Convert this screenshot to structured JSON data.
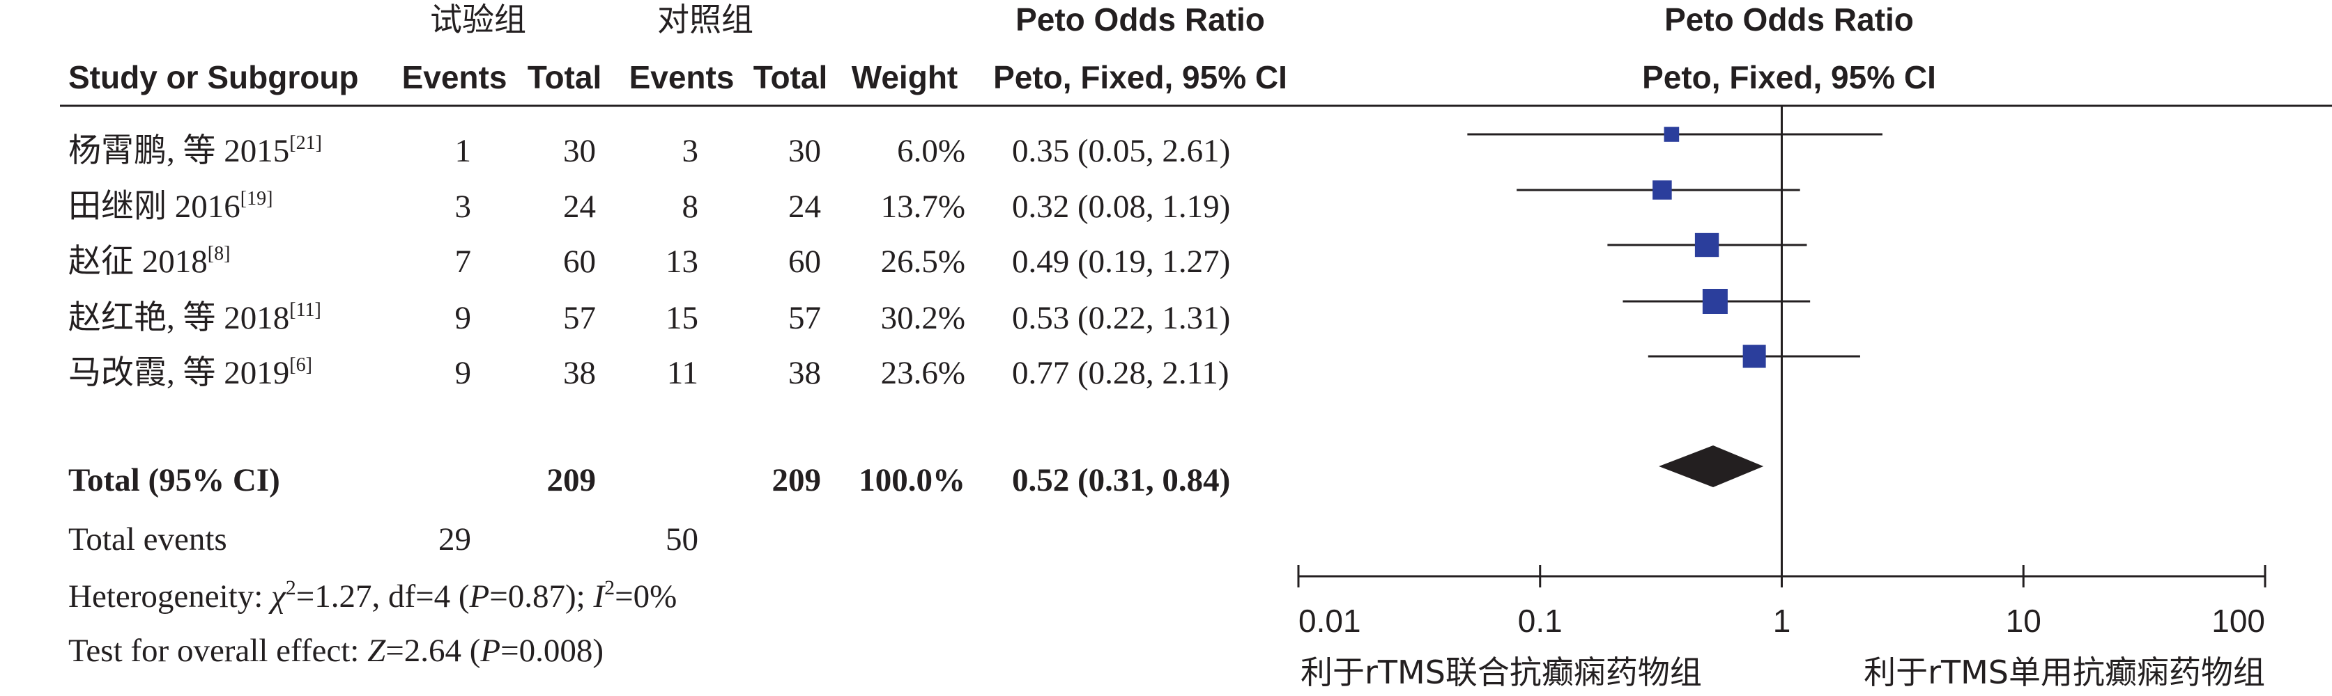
{
  "chart_data": {
    "type": "forest",
    "groups": {
      "experimental": "试验组",
      "control": "对照组"
    },
    "columns": {
      "study": "Study or Subgroup",
      "events": "Events",
      "total": "Total",
      "weight": "Weight",
      "or_title": "Peto Odds Ratio",
      "or_method": "Peto, Fixed, 95% CI"
    },
    "plot_header": {
      "title": "Peto Odds Ratio",
      "method": "Peto, Fixed, 95% CI"
    },
    "studies": [
      {
        "name": "杨霄鹏, 等 2015",
        "ref": "[21]",
        "exp_events": "1",
        "exp_total": "30",
        "ctl_events": "3",
        "ctl_total": "30",
        "weight_label": "6.0%",
        "weight": 6.0,
        "ci_label": "0.35 (0.05, 2.61)",
        "or": 0.35,
        "lower": 0.05,
        "upper": 2.61
      },
      {
        "name": "田继刚 2016",
        "ref": "[19]",
        "exp_events": "3",
        "exp_total": "24",
        "ctl_events": "8",
        "ctl_total": "24",
        "weight_label": "13.7%",
        "weight": 13.7,
        "ci_label": "0.32 (0.08, 1.19)",
        "or": 0.32,
        "lower": 0.08,
        "upper": 1.19
      },
      {
        "name": "赵征 2018",
        "ref": "[8]",
        "exp_events": "7",
        "exp_total": "60",
        "ctl_events": "13",
        "ctl_total": "60",
        "weight_label": "26.5%",
        "weight": 26.5,
        "ci_label": "0.49 (0.19, 1.27)",
        "or": 0.49,
        "lower": 0.19,
        "upper": 1.27
      },
      {
        "name": "赵红艳, 等 2018",
        "ref": "[11]",
        "exp_events": "9",
        "exp_total": "57",
        "ctl_events": "15",
        "ctl_total": "57",
        "weight_label": "30.2%",
        "weight": 30.2,
        "ci_label": "0.53 (0.22, 1.31)",
        "or": 0.53,
        "lower": 0.22,
        "upper": 1.31
      },
      {
        "name": "马改霞, 等 2019",
        "ref": "[6]",
        "exp_events": "9",
        "exp_total": "38",
        "ctl_events": "11",
        "ctl_total": "38",
        "weight_label": "23.6%",
        "weight": 23.6,
        "ci_label": "0.77 (0.28, 2.11)",
        "or": 0.77,
        "lower": 0.28,
        "upper": 2.11
      }
    ],
    "total": {
      "label": "Total (95% CI)",
      "exp_total": "209",
      "ctl_total": "209",
      "weight_label": "100.0%",
      "ci_label": "0.52 (0.31, 0.84)",
      "or": 0.52,
      "lower": 0.31,
      "upper": 0.84
    },
    "total_events": {
      "label": "Total events",
      "exp": "29",
      "ctl": "50"
    },
    "heterogeneity": {
      "label": "Heterogeneity: ",
      "chi_symbol": "χ",
      "chi_sup": "2",
      "chi_value": "=1.27, df=4 (",
      "p_symbol": "P",
      "p_value": "=0.87); ",
      "i_symbol": "I",
      "i_sup": "2",
      "i_value": "=0%"
    },
    "overall_effect": {
      "label": "Test for overall effect: ",
      "z_symbol": "Z",
      "z_value": "=2.64 (",
      "p_symbol": "P",
      "p_value": "=0.008)"
    },
    "x_axis": {
      "scale": "log",
      "range": [
        0.01,
        100
      ],
      "ticks": [
        0.01,
        0.1,
        1,
        10,
        100
      ],
      "tick_labels": [
        "0.01",
        "0.1",
        "1",
        "10",
        "100"
      ]
    },
    "favours_left": "利于rTMS联合抗癫痫药物组",
    "favours_right": "利于rTMS单用抗癫痫药物组",
    "marker_color": "#2b3e9c",
    "diamond_color": "#231f20"
  }
}
